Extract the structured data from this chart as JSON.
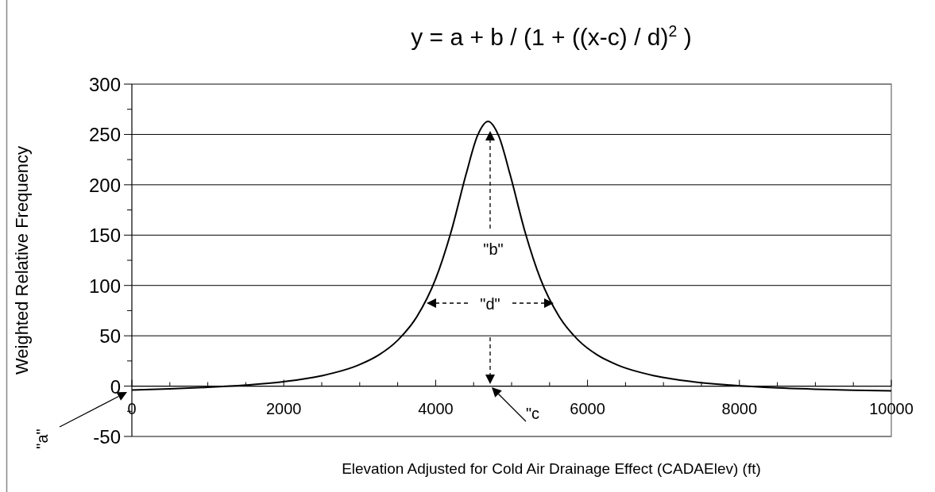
{
  "chart_data": {
    "type": "line",
    "title": "y = a + b / (1 + ((x-c) / d)$^{2}$ )",
    "xlabel": "Elevation Adjusted for Cold Air Drainage Effect (CADAElev) (ft)",
    "ylabel": "Weighted Relative Frequency",
    "x": [
      0,
      500,
      1000,
      1500,
      2000,
      2500,
      3000,
      3250,
      3500,
      3750,
      4000,
      4200,
      4400,
      4550,
      4690,
      4830,
      4980,
      5180,
      5380,
      5630,
      5880,
      6130,
      6380,
      6880,
      7380,
      7880,
      8500,
      9000,
      9500,
      10000
    ],
    "series": [
      {
        "color": "#000000",
        "values": [
          -3.8,
          -2.7,
          -1.2,
          1.0,
          4.4,
          10.3,
          21.4,
          30.9,
          45.5,
          68.6,
          106.5,
          152.4,
          210.3,
          248.6,
          263,
          248.6,
          210.3,
          152.4,
          106.5,
          68.6,
          45.5,
          30.9,
          21.4,
          10.3,
          4.4,
          1.0,
          -1.7,
          -3.0,
          -4.0,
          -4.7
        ]
      }
    ],
    "xlim": [
      0,
      10000
    ],
    "ylim": [
      -50,
      300
    ],
    "xticks": [
      0,
      {
        "value": 500,
        "label": null
      },
      {
        "value": 1000,
        "label": null
      },
      {
        "value": 1500,
        "label": null
      },
      2000,
      {
        "value": 2500,
        "label": null
      },
      {
        "value": 3000,
        "label": null
      },
      {
        "value": 3500,
        "label": null
      },
      4000,
      {
        "value": 4500,
        "label": null
      },
      {
        "value": 5000,
        "label": null
      },
      {
        "value": 5500,
        "label": null
      },
      6000,
      {
        "value": 6500,
        "label": null
      },
      {
        "value": 7000,
        "label": null
      },
      {
        "value": 7500,
        "label": null
      },
      8000,
      {
        "value": 8500,
        "label": null
      },
      {
        "value": 9000,
        "label": null
      },
      {
        "value": 9500,
        "label": null
      },
      10000
    ],
    "yticks": [
      -50,
      {
        "value": -25,
        "label": null
      },
      0,
      {
        "value": 25,
        "label": null
      },
      50,
      {
        "value": 75,
        "label": null
      },
      100,
      {
        "value": 125,
        "label": null
      },
      150,
      {
        "value": 175,
        "label": null
      },
      200,
      {
        "value": 225,
        "label": null
      },
      250,
      {
        "value": 275,
        "label": null
      },
      300
    ],
    "grid": "y",
    "marker": "none",
    "line_style": "solid",
    "annotations": [
      "\"b\"",
      "\"d\"",
      "\"c",
      "\"a\""
    ]
  }
}
